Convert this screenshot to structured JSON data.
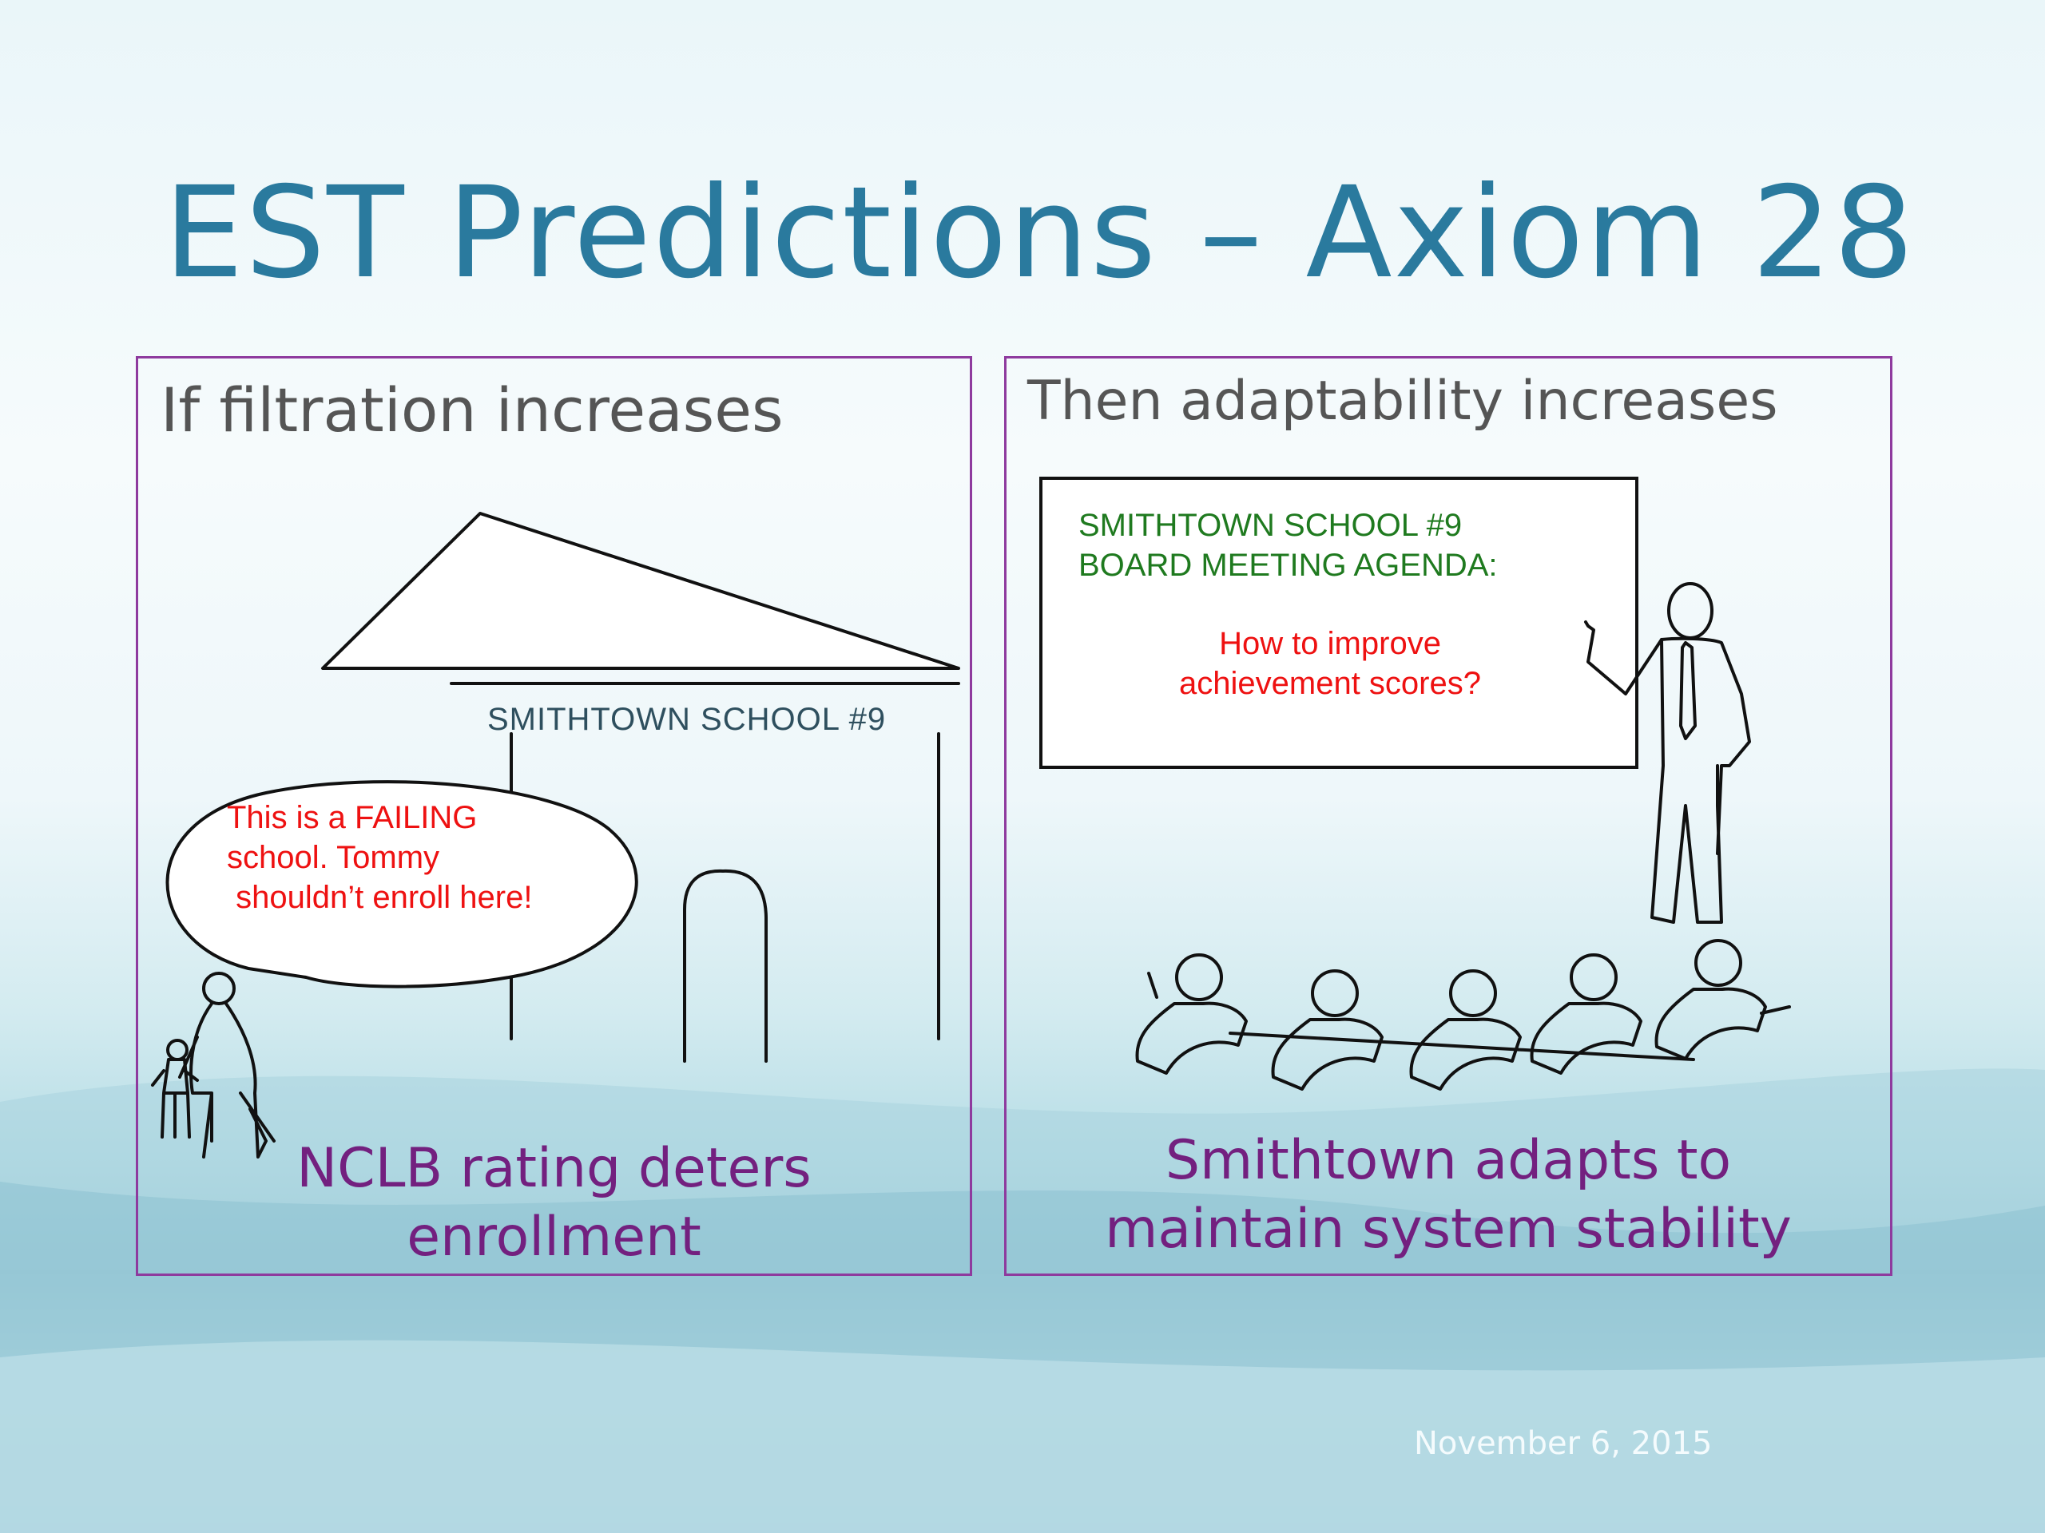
{
  "slide": {
    "title": "EST Predictions – Axiom 28",
    "date": "November 6, 2015"
  },
  "left_panel": {
    "heading": "If  filtration increases",
    "school_sign": "SMITHTOWN SCHOOL #9",
    "speech_lines": [
      "This is a FAILING",
      "school.  Tommy",
      " shouldn’t enroll here!"
    ],
    "caption_lines": [
      "NCLB rating deters",
      "enrollment"
    ]
  },
  "right_panel": {
    "heading": "Then adaptability increases",
    "board_lines": [
      "SMITHTOWN SCHOOL #9",
      "BOARD MEETING AGENDA:"
    ],
    "board_question_lines": [
      "How to improve",
      "achievement scores?"
    ],
    "caption_lines": [
      "Smithtown adapts to",
      "maintain system stability"
    ]
  },
  "colors": {
    "title": "#2a7a9e",
    "panel_border": "#8e3a9e",
    "caption": "#73207f",
    "speech_text": "#ee1111",
    "board_text": "#1f7a1f"
  }
}
